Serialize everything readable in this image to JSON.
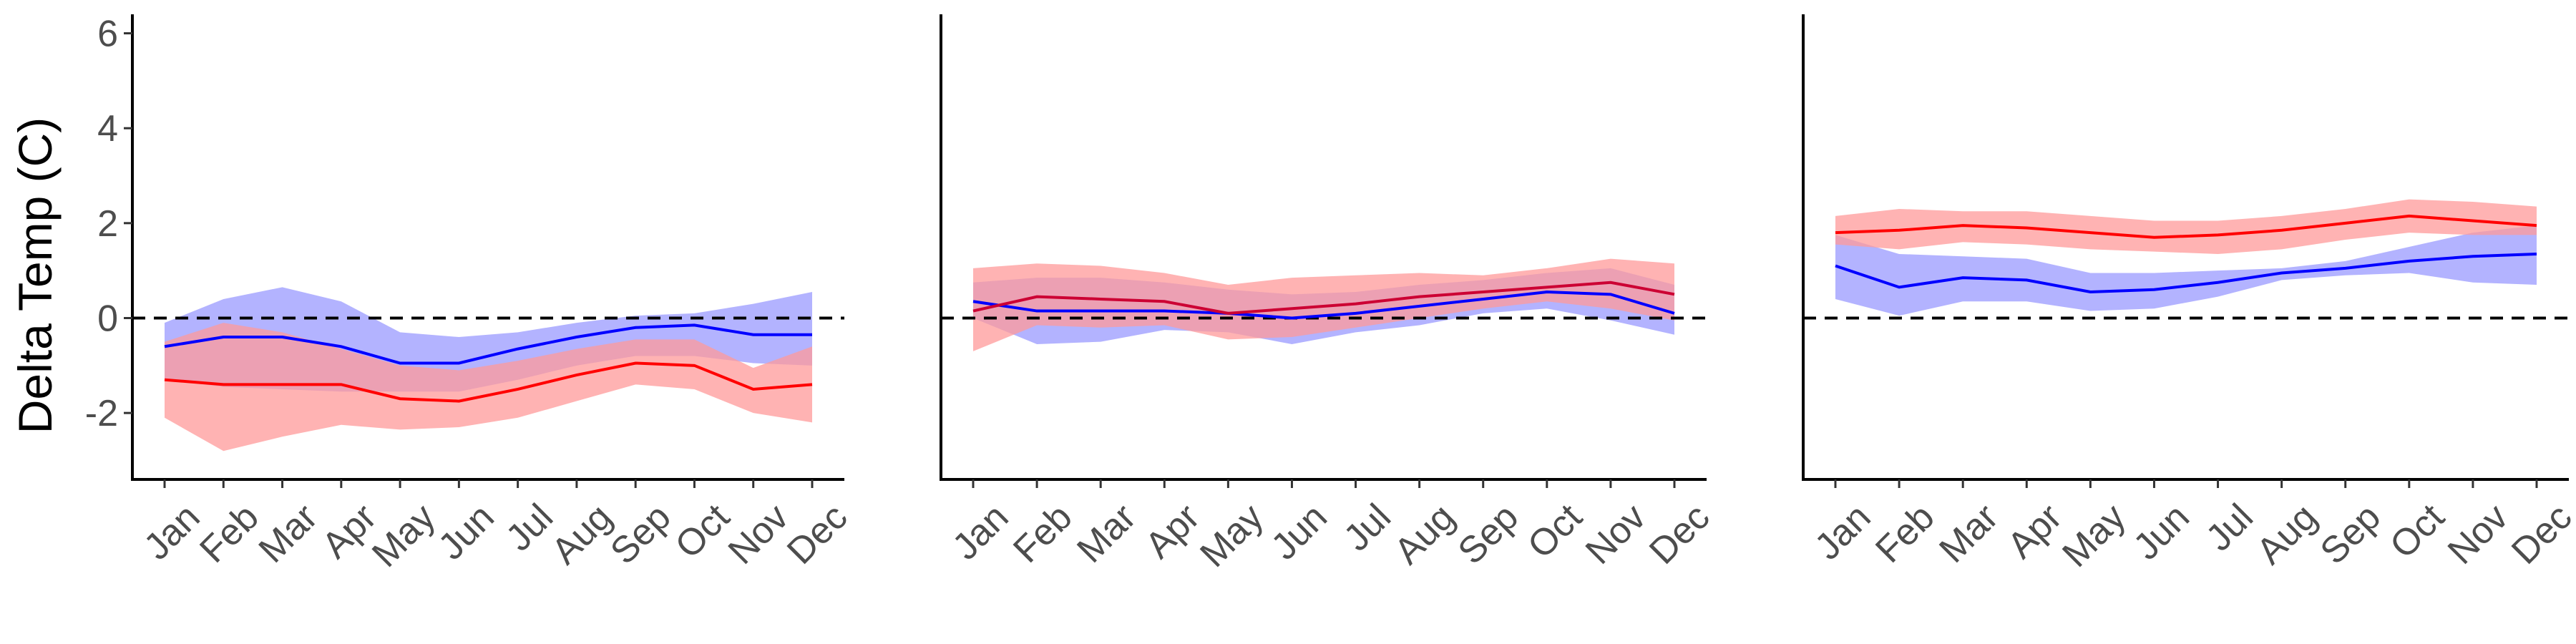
{
  "chart_data": [
    {
      "type": "line",
      "categories": [
        "Jan",
        "Feb",
        "Mar",
        "Apr",
        "May",
        "Jun",
        "Jul",
        "Aug",
        "Sep",
        "Oct",
        "Nov",
        "Dec"
      ],
      "ylabel": "Delta Temp (C)",
      "ylim": [
        -3.4,
        6.4
      ],
      "yticks": [
        -2,
        0,
        2,
        4,
        6
      ],
      "reference_line": 0,
      "series": [
        {
          "color": "#0000ff",
          "band_color": "#9999ff",
          "values": [
            -0.6,
            -0.4,
            -0.4,
            -0.6,
            -0.95,
            -0.95,
            -0.65,
            -0.4,
            -0.2,
            -0.15,
            -0.35,
            -0.35
          ],
          "lower": [
            -1.3,
            -1.45,
            -1.5,
            -1.55,
            -1.55,
            -1.55,
            -1.3,
            -1.0,
            -0.8,
            -0.8,
            -0.95,
            -1.0
          ],
          "upper": [
            -0.1,
            0.4,
            0.65,
            0.35,
            -0.3,
            -0.4,
            -0.3,
            -0.1,
            0.05,
            0.1,
            0.3,
            0.55
          ]
        },
        {
          "color": "#ff0000",
          "band_color": "#ff9999",
          "values": [
            -1.3,
            -1.4,
            -1.4,
            -1.4,
            -1.7,
            -1.75,
            -1.5,
            -1.2,
            -0.95,
            -1.0,
            -1.5,
            -1.4
          ],
          "lower": [
            -2.1,
            -2.8,
            -2.5,
            -2.25,
            -2.35,
            -2.3,
            -2.1,
            -1.75,
            -1.4,
            -1.5,
            -2.0,
            -2.2
          ],
          "upper": [
            -0.5,
            -0.1,
            -0.3,
            -0.65,
            -1.0,
            -1.1,
            -0.9,
            -0.65,
            -0.45,
            -0.45,
            -1.05,
            -0.6
          ]
        }
      ]
    },
    {
      "type": "line",
      "categories": [
        "Jan",
        "Feb",
        "Mar",
        "Apr",
        "May",
        "Jun",
        "Jul",
        "Aug",
        "Sep",
        "Oct",
        "Nov",
        "Dec"
      ],
      "ylim": [
        -3.4,
        6.4
      ],
      "reference_line": 0,
      "series": [
        {
          "color": "#0000ff",
          "band_color": "#9999ff",
          "values": [
            0.35,
            0.15,
            0.15,
            0.15,
            0.1,
            0.0,
            0.1,
            0.25,
            0.4,
            0.55,
            0.5,
            0.1
          ],
          "lower": [
            0.0,
            -0.55,
            -0.5,
            -0.25,
            -0.3,
            -0.55,
            -0.3,
            -0.15,
            0.1,
            0.2,
            -0.05,
            -0.35
          ],
          "upper": [
            0.75,
            0.85,
            0.85,
            0.75,
            0.6,
            0.5,
            0.55,
            0.7,
            0.8,
            0.95,
            1.05,
            0.7
          ]
        },
        {
          "color": "#cc0033",
          "band_color": "#ff9999",
          "values": [
            0.15,
            0.45,
            0.4,
            0.35,
            0.1,
            0.2,
            0.3,
            0.45,
            0.55,
            0.65,
            0.75,
            0.5
          ],
          "lower": [
            -0.7,
            -0.15,
            -0.2,
            -0.15,
            -0.45,
            -0.4,
            -0.2,
            0.0,
            0.2,
            0.35,
            0.2,
            -0.05
          ],
          "upper": [
            1.05,
            1.15,
            1.1,
            0.95,
            0.7,
            0.85,
            0.9,
            0.95,
            0.9,
            1.05,
            1.25,
            1.15
          ]
        }
      ]
    },
    {
      "type": "line",
      "categories": [
        "Jan",
        "Feb",
        "Mar",
        "Apr",
        "May",
        "Jun",
        "Jul",
        "Aug",
        "Sep",
        "Oct",
        "Nov",
        "Dec"
      ],
      "ylim": [
        -3.4,
        6.4
      ],
      "reference_line": 0,
      "series": [
        {
          "color": "#0000ff",
          "band_color": "#9999ff",
          "values": [
            1.1,
            0.65,
            0.85,
            0.8,
            0.55,
            0.6,
            0.75,
            0.95,
            1.05,
            1.2,
            1.3,
            1.35
          ],
          "lower": [
            0.4,
            0.05,
            0.35,
            0.35,
            0.15,
            0.2,
            0.45,
            0.8,
            0.9,
            0.95,
            0.75,
            0.7
          ],
          "upper": [
            1.75,
            1.35,
            1.3,
            1.25,
            0.95,
            0.95,
            1.0,
            1.05,
            1.2,
            1.5,
            1.8,
            1.95
          ]
        },
        {
          "color": "#ff0000",
          "band_color": "#ff9999",
          "values": [
            1.8,
            1.85,
            1.95,
            1.9,
            1.8,
            1.7,
            1.75,
            1.85,
            2.0,
            2.15,
            2.05,
            1.95
          ],
          "lower": [
            1.55,
            1.45,
            1.6,
            1.55,
            1.45,
            1.4,
            1.35,
            1.45,
            1.65,
            1.8,
            1.75,
            1.75
          ],
          "upper": [
            2.15,
            2.3,
            2.25,
            2.25,
            2.15,
            2.05,
            2.05,
            2.15,
            2.3,
            2.5,
            2.45,
            2.35
          ]
        }
      ]
    }
  ]
}
